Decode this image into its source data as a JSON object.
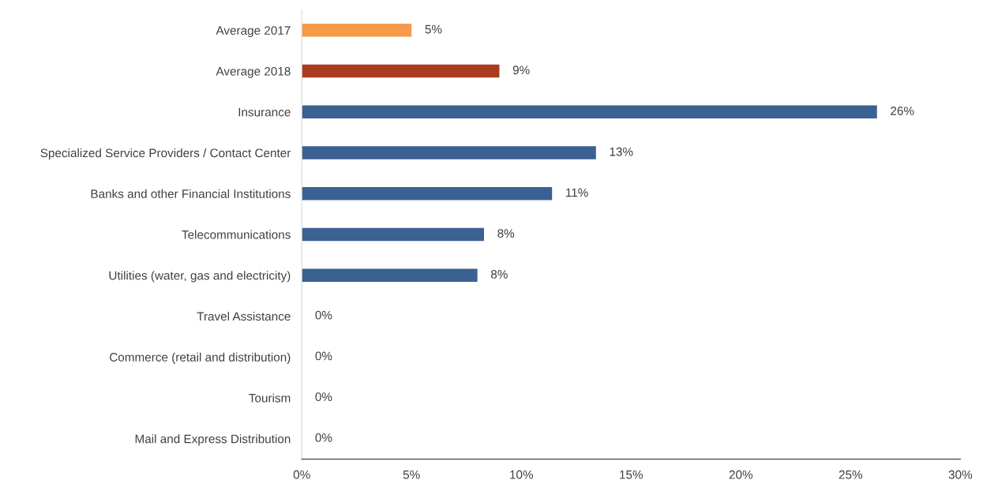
{
  "chart_data": {
    "type": "bar",
    "orientation": "horizontal",
    "categories": [
      "Average 2017",
      "Average 2018",
      "Insurance",
      "Specialized Service Providers / Contact Center",
      "Banks and other Financial Institutions",
      "Telecommunications",
      "Utilities (water, gas and electricity)",
      "Travel Assistance",
      "Commerce (retail and distribution)",
      "Tourism",
      "Mail and Express Distribution"
    ],
    "values": [
      5.0,
      9.0,
      26.2,
      13.4,
      11.4,
      8.3,
      8.0,
      0,
      0,
      0,
      0
    ],
    "colors": [
      "#f59a4b",
      "#a93b1f",
      "#3a6191",
      "#3a6191",
      "#3a6191",
      "#3a6191",
      "#3a6191",
      "#3a6191",
      "#3a6191",
      "#3a6191",
      "#3a6191"
    ],
    "value_labels": [
      "5%",
      "9%",
      "26%",
      "13%",
      "11%",
      "8%",
      "8%",
      "0%",
      "0%",
      "0%",
      "0%"
    ],
    "xlim": [
      0,
      30
    ],
    "xticks": [
      {
        "value": 0,
        "label": "0%"
      },
      {
        "value": 5,
        "label": "5%"
      },
      {
        "value": 10,
        "label": "10%"
      },
      {
        "value": 15,
        "label": "15%"
      },
      {
        "value": 20,
        "label": "20%"
      },
      {
        "value": 25,
        "label": "25%"
      },
      {
        "value": 30,
        "label": "30%"
      }
    ],
    "grid": false
  }
}
